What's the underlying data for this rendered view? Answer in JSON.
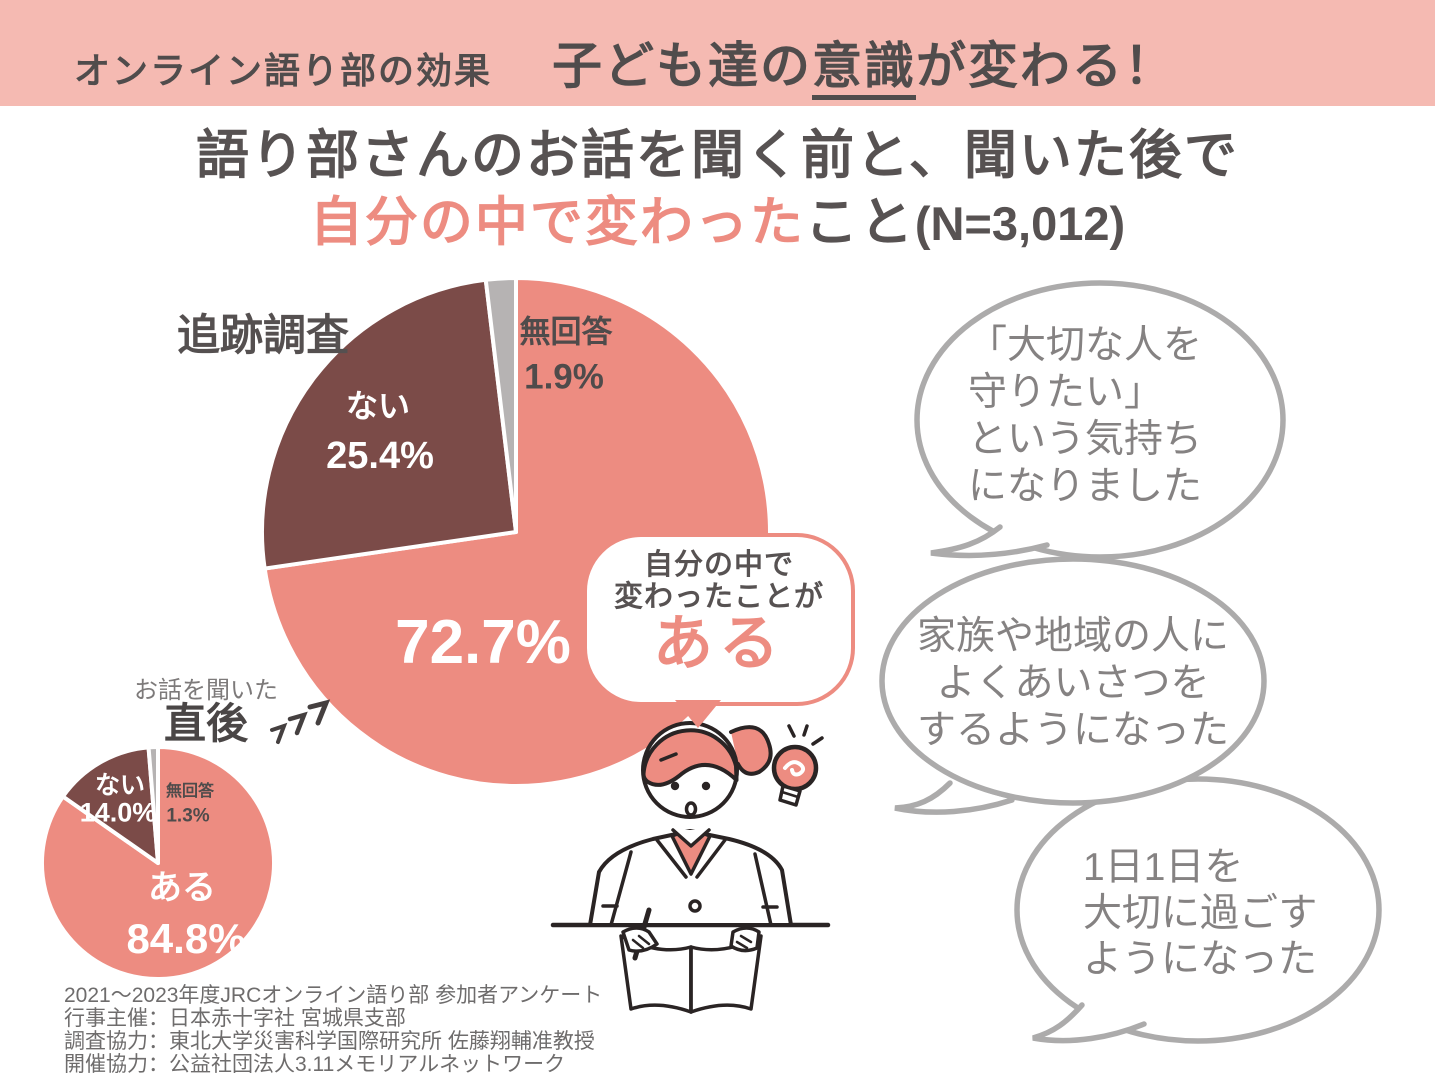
{
  "header": {
    "label": "オンライン語り部の効果",
    "title_pre": "子ども達の",
    "title_em": "意識",
    "title_post": "が変わる！"
  },
  "title": {
    "line1": "語り部さんのお話を聞く前と、聞いた後で",
    "line2_highlight": "自分の中で変わった",
    "line2_normal": "こと",
    "line2_n": "(N=3,012)"
  },
  "chart_data": [
    {
      "id": "followup-survey",
      "type": "pie",
      "title": "追跡調査",
      "start_angle": "top",
      "direction": "clockwise",
      "slices": [
        {
          "label": "ある",
          "value": 72.7,
          "value_label": "72.7%",
          "color": "#ED8C81"
        },
        {
          "label": "ない",
          "value": 25.4,
          "value_label": "25.4%",
          "color": "#7B4B48"
        },
        {
          "label": "無回答",
          "value": 1.9,
          "value_label": "1.9%",
          "color": "#B6B3B3"
        }
      ]
    },
    {
      "id": "right-after-survey",
      "type": "pie",
      "title_note": "お話を聞いた",
      "title": "直後",
      "start_angle": "top",
      "direction": "clockwise",
      "slices": [
        {
          "label": "ある",
          "value": 84.8,
          "value_label": "84.8%",
          "color": "#ED8C81"
        },
        {
          "label": "ない",
          "value": 14.0,
          "value_label": "14.0%",
          "color": "#7B4B48"
        },
        {
          "label": "無回答",
          "value": 1.3,
          "value_label": "1.3%",
          "color": "#B6B3B3"
        }
      ]
    }
  ],
  "callout": {
    "line1": "自分の中で",
    "line2": "変わったことが",
    "emphasis": "ある"
  },
  "quotes": [
    {
      "lines": [
        "「大切な人を",
        "守りたい」",
        "という気持ち",
        "になりました"
      ]
    },
    {
      "lines": [
        "家族や地域の人に",
        "よくあいさつを",
        "するようになった"
      ]
    },
    {
      "lines": [
        "1日1日を",
        "大切に過ごす",
        "ようになった"
      ]
    }
  ],
  "footer": {
    "lines": [
      "2021〜2023年度JRCオンライン語り部 参加者アンケート",
      "行事主催：日本赤十字社 宮城県支部",
      "調査協力：東北大学災害科学国際研究所 佐藤翔輔准教授",
      "開催協力：公益社団法人3.11メモリアルネットワーク"
    ]
  },
  "colors": {
    "band_pink": "#F5BAB2",
    "accent_salmon": "#ED8C81",
    "slice_brown": "#7B4B48",
    "slice_gray": "#B6B3B3",
    "heading_gray": "#575252",
    "quote_gray": "#858282",
    "bubble_stroke": "#ACABAB"
  }
}
